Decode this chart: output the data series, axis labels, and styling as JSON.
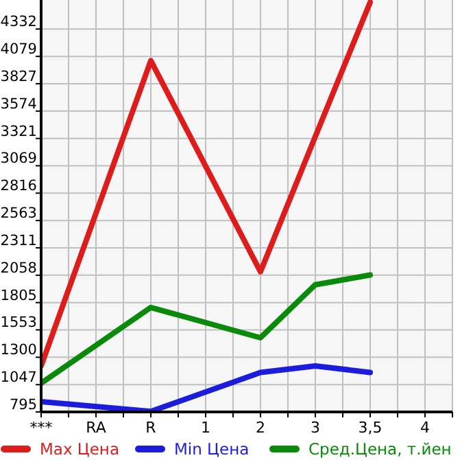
{
  "chart_data": {
    "type": "line",
    "categories": [
      "***",
      "RA",
      "R",
      "1",
      "2",
      "3",
      "3,5",
      "4"
    ],
    "series": [
      {
        "name": "Max Цена",
        "color": "#dd1c1c",
        "values": [
          1220,
          null,
          4040,
          null,
          2090,
          3340,
          4580,
          null
        ]
      },
      {
        "name": "Min Цена",
        "color": "#1c1cdd",
        "values": [
          890,
          null,
          800,
          null,
          1160,
          1220,
          1160,
          null
        ]
      },
      {
        "name": "Сред.Цена, т.йен",
        "color": "#0a8a0a",
        "values": [
          1060,
          null,
          1760,
          null,
          1480,
          1970,
          2060,
          null
        ]
      }
    ],
    "ylim": [
      795,
      4600
    ],
    "yticks": [
      795,
      1047,
      1300,
      1553,
      1805,
      2058,
      2311,
      2563,
      2816,
      3069,
      3321,
      3574,
      3827,
      4079,
      4332
    ],
    "grid": true,
    "legend": "bottom",
    "marker": "none",
    "line_style": "solid"
  }
}
